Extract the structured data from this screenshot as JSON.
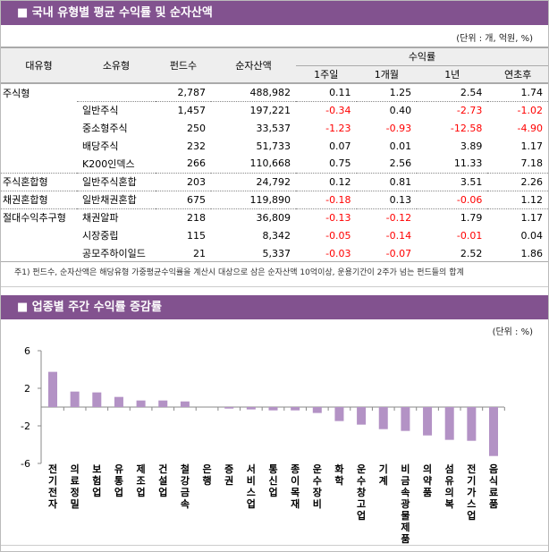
{
  "section1": {
    "title": "■ 국내 유형별 평균 수익률 및 순자산액",
    "unit": "(단위 : 개, 억원, %)",
    "headers": {
      "major": "대유형",
      "minor": "소유형",
      "funds": "펀드수",
      "assets": "순자산액",
      "returns": "수익률",
      "w1": "1주일",
      "m1": "1개월",
      "y1": "1년",
      "ytd": "연초후"
    },
    "rows": [
      [
        "주식형",
        "",
        "2,787",
        "488,982",
        "0.11",
        "1.25",
        "2.54",
        "1.74"
      ],
      [
        "",
        "일반주식",
        "1,457",
        "197,221",
        "-0.34",
        "0.40",
        "-2.73",
        "-1.02"
      ],
      [
        "",
        "중소형주식",
        "250",
        "33,537",
        "-1.23",
        "-0.93",
        "-12.58",
        "-4.90"
      ],
      [
        "",
        "배당주식",
        "232",
        "51,733",
        "0.07",
        "0.01",
        "3.89",
        "1.17"
      ],
      [
        "",
        "K200인덱스",
        "266",
        "110,668",
        "0.75",
        "2.56",
        "11.33",
        "7.18"
      ],
      [
        "주식혼합형",
        "일반주식혼합",
        "203",
        "24,792",
        "0.12",
        "0.81",
        "3.51",
        "2.26"
      ],
      [
        "채권혼합형",
        "일반채권혼합",
        "675",
        "119,890",
        "-0.18",
        "0.13",
        "-0.06",
        "1.12"
      ],
      [
        "절대수익추구형",
        "채권알파",
        "218",
        "36,809",
        "-0.13",
        "-0.12",
        "1.79",
        "1.17"
      ],
      [
        "",
        "시장중립",
        "115",
        "8,342",
        "-0.05",
        "-0.14",
        "-0.01",
        "0.04"
      ],
      [
        "",
        "공모주하이일드",
        "21",
        "5,337",
        "-0.03",
        "-0.07",
        "2.52",
        "1.86"
      ]
    ],
    "note": "주1) 펀드수, 순자산액은 해당유형 가중평균수익률을 계산시 대상으로 삼은 순자산액 10억이상, 운용기간이 2주가 넘는 펀드들의 합계"
  },
  "section2": {
    "title": "■ 업종별 주간 수익률 증감률",
    "unit": "(단위 : %)"
  },
  "colors": {
    "header": "#82528f",
    "bar": "#b392c5",
    "negative": "#ff0000"
  },
  "chart_data": {
    "type": "bar",
    "ylim": [
      -6,
      6
    ],
    "yticks": [
      6,
      2,
      -2,
      -6
    ],
    "grid": false,
    "categories": [
      "전기전자",
      "의료정밀",
      "보험업",
      "유통업",
      "제조업",
      "건설업",
      "철강금속",
      "은행",
      "증권",
      "서비스업",
      "통신업",
      "종이목재",
      "운수장비",
      "화학",
      "운수창고업",
      "기계",
      "비금속광물제품",
      "의약품",
      "섬유의복",
      "전기가스업",
      "음식료품"
    ],
    "values": [
      3.75,
      1.65,
      1.56,
      1.08,
      0.7,
      0.7,
      0.6,
      0,
      -0.16,
      -0.25,
      -0.35,
      -0.35,
      -0.63,
      -1.49,
      -1.87,
      -2.35,
      -2.54,
      -3.02,
      -3.49,
      -3.59,
      -5.21
    ]
  }
}
